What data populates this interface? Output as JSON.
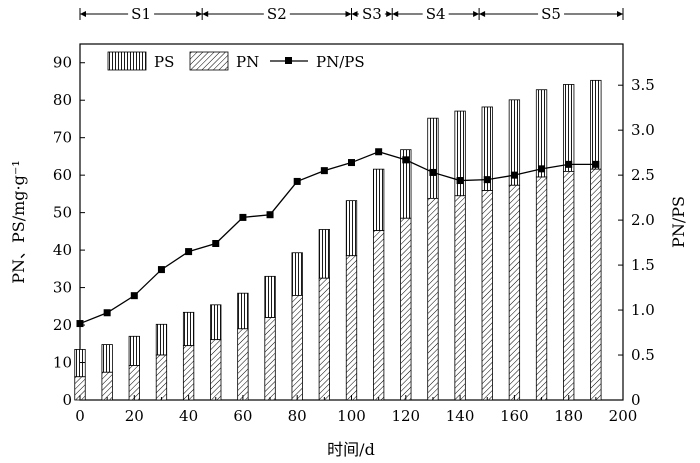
{
  "chart_data": {
    "type": "bar",
    "xlabel": "时间/d",
    "ylabel_left": "PN、PS/mg·g⁻¹",
    "ylabel_right": "PN/PS",
    "xlim": [
      0,
      200
    ],
    "ylim_left": [
      0,
      95
    ],
    "ylim_right": [
      0,
      3.958
    ],
    "x_ticks": [
      "0",
      "20",
      "40",
      "60",
      "80",
      "100",
      "120",
      "140",
      "160",
      "180",
      "200"
    ],
    "y_left_ticks": [
      "0",
      "10",
      "20",
      "30",
      "40",
      "50",
      "60",
      "70",
      "80",
      "90"
    ],
    "y_right_ticks": [
      "0",
      "0.5",
      "1.0",
      "1.5",
      "2.0",
      "2.5",
      "3.0",
      "3.5"
    ],
    "legend": [
      "PS",
      "PN",
      "PN/PS"
    ],
    "legend_position": "top-left",
    "grid": false,
    "x": [
      0,
      10,
      20,
      30,
      40,
      50,
      60,
      70,
      80,
      90,
      100,
      110,
      120,
      130,
      140,
      150,
      160,
      170,
      180,
      190
    ],
    "series": [
      {
        "name": "PN",
        "kind": "bar-hatched",
        "values": [
          6.2,
          7.4,
          9.2,
          12.0,
          14.5,
          16.1,
          19.0,
          22.0,
          27.9,
          32.5,
          38.5,
          45.2,
          48.5,
          53.8,
          54.5,
          55.9,
          57.3,
          59.5,
          61.0,
          61.6
        ]
      },
      {
        "name": "PS",
        "kind": "bar-vertical-stripes",
        "note": "total height PN+PS",
        "values": [
          13.5,
          14.8,
          17.0,
          20.2,
          23.4,
          25.4,
          28.5,
          33.0,
          39.3,
          45.5,
          53.2,
          61.6,
          66.8,
          75.2,
          77.1,
          78.2,
          80.1,
          82.8,
          84.2,
          85.3
        ]
      },
      {
        "name": "PN/PS",
        "kind": "line-square-markers",
        "axis": "right",
        "values": [
          0.85,
          0.97,
          1.16,
          1.45,
          1.65,
          1.74,
          2.03,
          2.06,
          2.43,
          2.55,
          2.64,
          2.76,
          2.67,
          2.53,
          2.44,
          2.45,
          2.5,
          2.57,
          2.62,
          2.62
        ]
      }
    ],
    "stages": [
      {
        "label": "S1",
        "start": 0,
        "end": 45
      },
      {
        "label": "S2",
        "start": 45,
        "end": 100
      },
      {
        "label": "S3",
        "start": 100,
        "end": 115
      },
      {
        "label": "S4",
        "start": 115,
        "end": 147
      },
      {
        "label": "S5",
        "start": 147,
        "end": 200
      }
    ],
    "colors": {
      "ink": "#000000",
      "background": "#ffffff"
    }
  }
}
